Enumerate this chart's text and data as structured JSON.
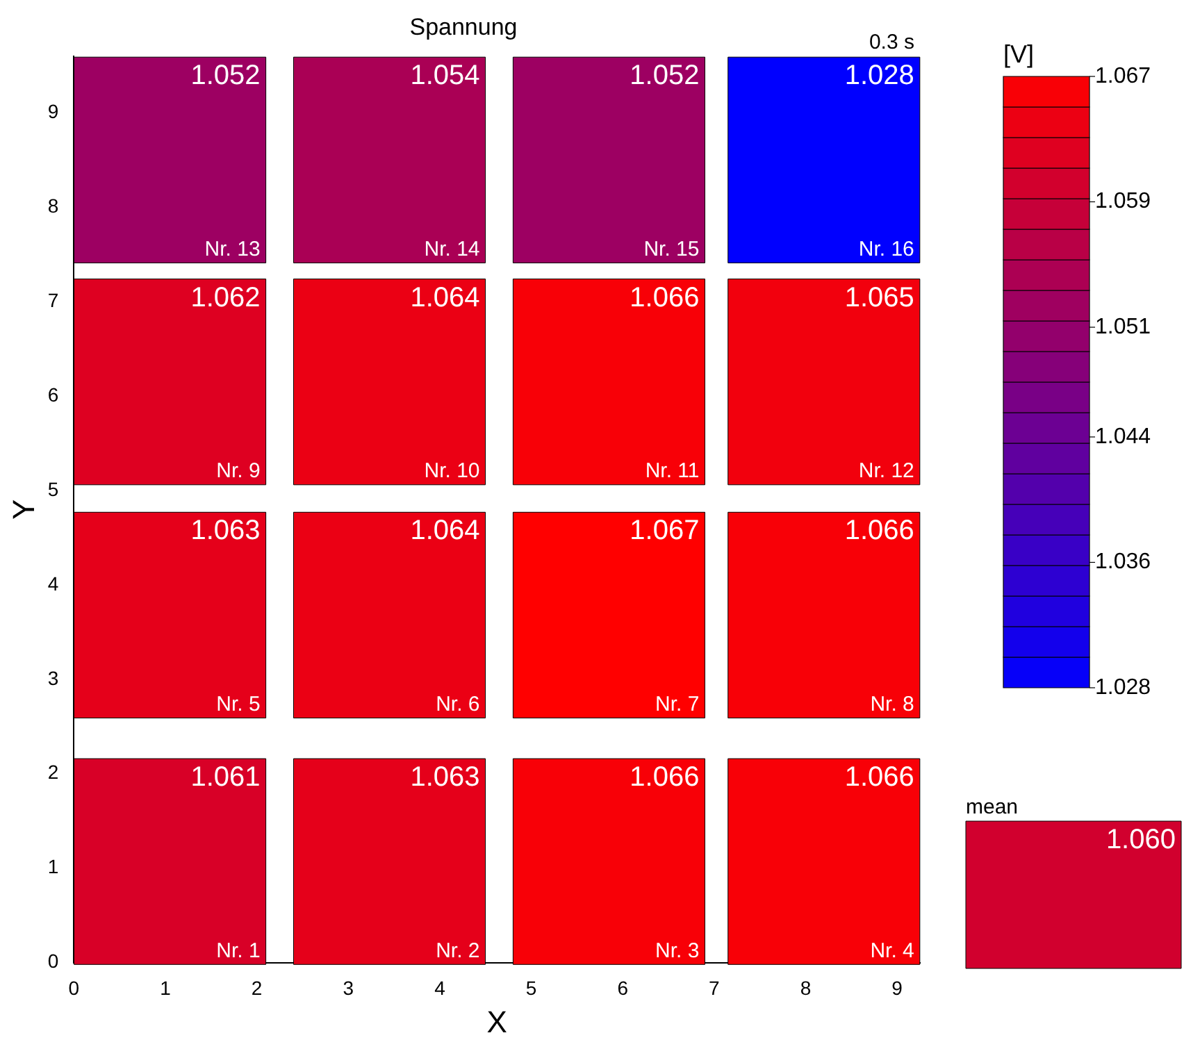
{
  "chart_data": [
    {
      "type": "heatmap",
      "title": "Spannung",
      "xlabel": "X",
      "ylabel": "Y",
      "clabel": "[V]",
      "annotations": [
        "0.3 s"
      ],
      "x": [
        1.05,
        3.45,
        5.85,
        8.2
      ],
      "y": [
        8.5,
        6.15,
        3.68,
        1.07
      ],
      "cells": [
        [
          1.052,
          1.054,
          1.052,
          1.028
        ],
        [
          1.062,
          1.064,
          1.066,
          1.065
        ],
        [
          1.063,
          1.064,
          1.067,
          1.066
        ],
        [
          1.061,
          1.063,
          1.066,
          1.066
        ]
      ],
      "cell_labels": [
        [
          "1.052\nNr. 13",
          "1.054\nNr. 14",
          "1.052\nNr. 15",
          "1.028\nNr. 16"
        ],
        [
          "1.062\nNr. 9",
          "1.064\nNr. 10",
          "1.066\nNr. 11",
          "1.065\nNr. 12"
        ],
        [
          "1.063\nNr. 5",
          "1.064\nNr. 6",
          "1.067\nNr. 7",
          "1.066\nNr. 8"
        ],
        [
          "1.061\nNr. 1",
          "1.063\nNr. 2",
          "1.066\nNr. 3",
          "1.066\nNr. 4"
        ]
      ],
      "xlim": [
        0,
        9.25
      ],
      "xticks": [
        0,
        1,
        2,
        3,
        4,
        5,
        6,
        7,
        8,
        9
      ],
      "ylim": [
        0,
        9.6
      ],
      "yticks": [
        0,
        1,
        2,
        3,
        4,
        5,
        6,
        7,
        8,
        9
      ],
      "clim": [
        1.028,
        1.067
      ],
      "cticks": [
        1.028,
        1.036,
        1.044,
        1.051,
        1.059,
        1.067
      ]
    },
    {
      "type": "other",
      "title": "mean",
      "values": [
        1.06
      ],
      "value_labels": [
        "1.060"
      ]
    }
  ]
}
